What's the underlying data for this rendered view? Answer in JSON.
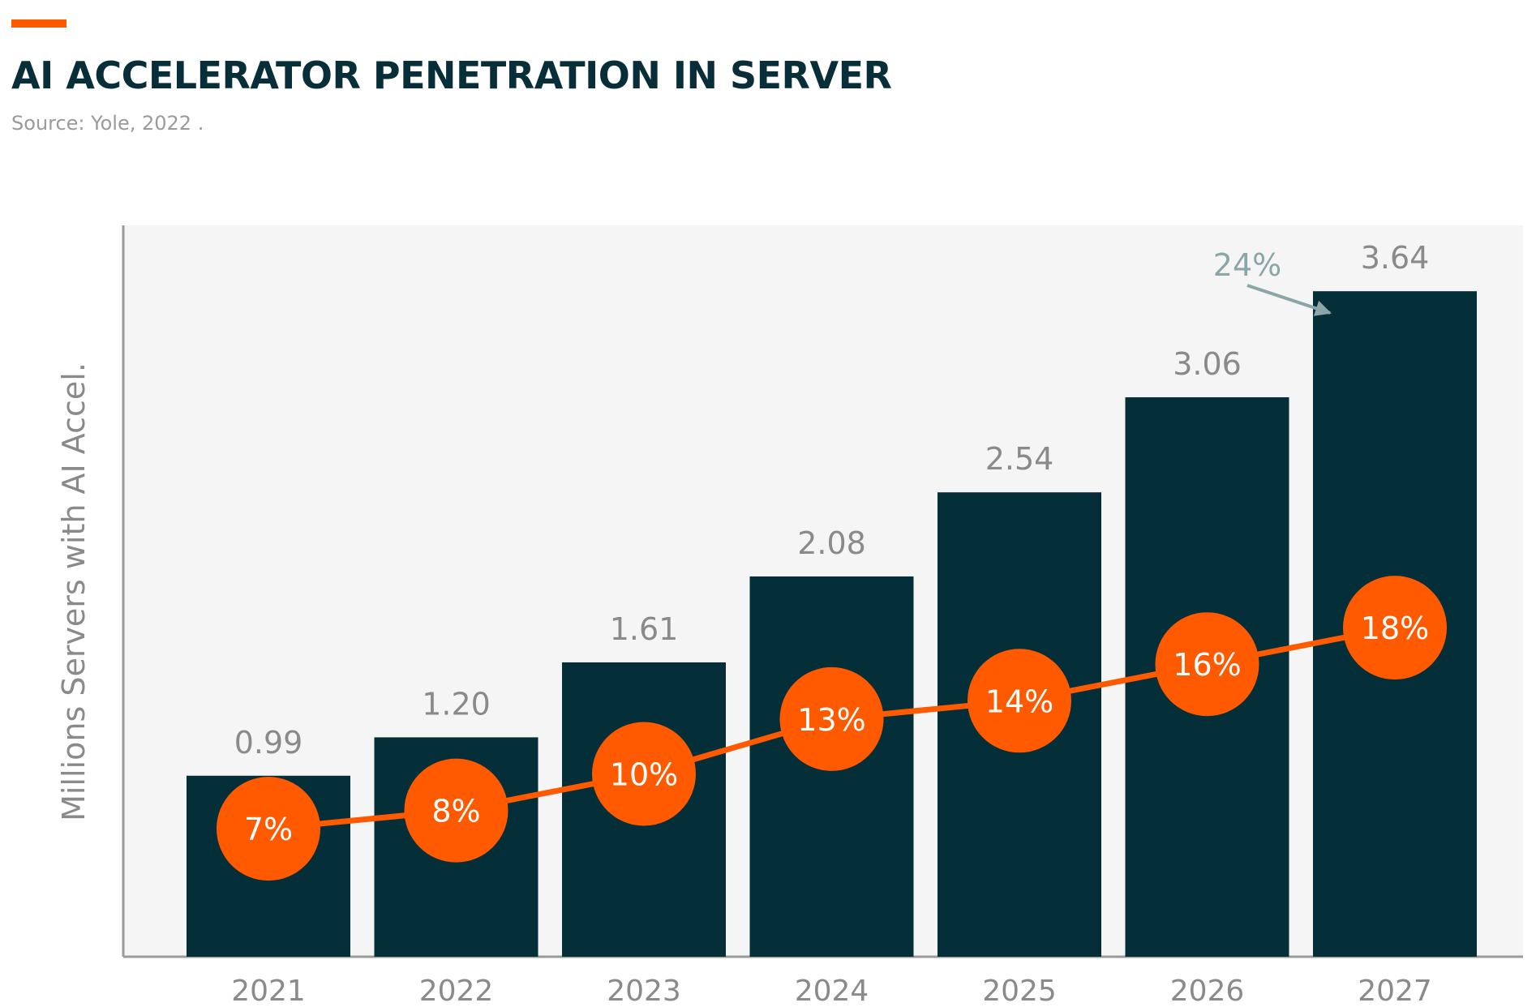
{
  "header": {
    "title": "AI ACCELERATOR PENETRATION IN SERVER",
    "source": "Source: Yole, 2022 ."
  },
  "colors": {
    "bar": "#042e38",
    "line": "#ff5a00",
    "accent": "#ff5a00",
    "value_label": "#8a8a8a",
    "annotation": "#8aa6a8",
    "plot_background": "#f5f5f5",
    "axis": "#9a9a9a"
  },
  "chart_data": {
    "type": "bar",
    "title": "AI ACCELERATOR PENETRATION IN SERVER",
    "xlabel": "",
    "ylabel": "Millions Servers with AI Accel.",
    "categories": [
      "2021",
      "2022",
      "2023",
      "2024",
      "2025",
      "2026",
      "2027"
    ],
    "series": [
      {
        "name": "Millions Servers with AI Accel.",
        "type": "bar",
        "values": [
          0.99,
          1.2,
          1.61,
          2.08,
          2.54,
          3.06,
          3.64
        ],
        "labels": [
          "0.99",
          "1.20",
          "1.61",
          "2.08",
          "2.54",
          "3.06",
          "3.64"
        ]
      },
      {
        "name": "",
        "type": "line",
        "values": [
          7,
          8,
          10,
          13,
          14,
          16,
          18
        ],
        "labels": [
          "7%",
          "8%",
          "10%",
          "13%",
          "14%",
          "16%",
          "18%"
        ]
      }
    ],
    "ylim": [
      0,
      4.0
    ],
    "line_ylim": [
      0,
      40
    ],
    "annotation": {
      "text": "24%",
      "target_category": "2027"
    },
    "grid": false,
    "legend": "none"
  }
}
